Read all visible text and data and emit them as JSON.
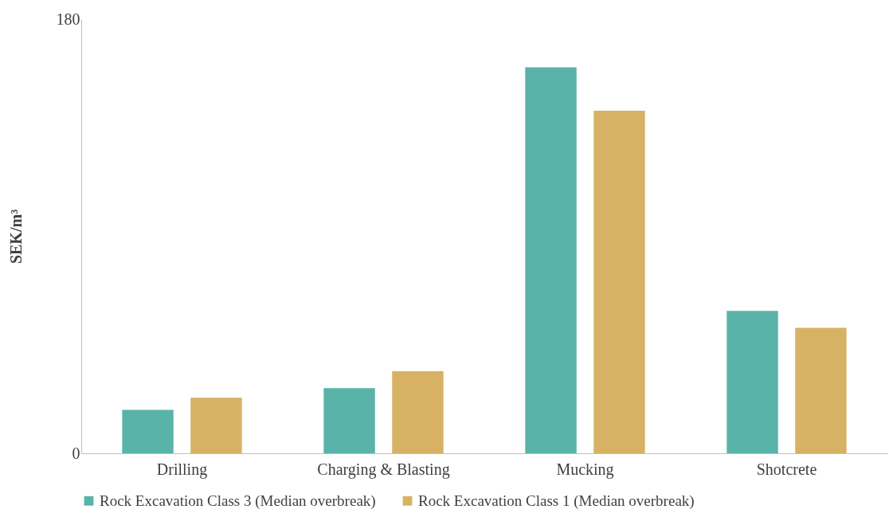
{
  "chart_data": {
    "type": "bar",
    "ylabel": "SEK/m³",
    "categories": [
      "Drilling",
      "Charging & Blasting",
      "Mucking",
      "Shotcrete"
    ],
    "series": [
      {
        "name": "Rock Excavation Class 3 (Median overbreak)",
        "color": "#5ab3a9",
        "values": [
          18,
          27,
          160,
          59
        ]
      },
      {
        "name": "Rock Excavation Class 1 (Median overbreak)",
        "color": "#d7b264",
        "values": [
          23,
          34,
          142,
          52
        ]
      }
    ],
    "ylim": [
      0,
      180
    ],
    "yticks": [
      0,
      180
    ],
    "grid": false,
    "legend": "bottom"
  }
}
